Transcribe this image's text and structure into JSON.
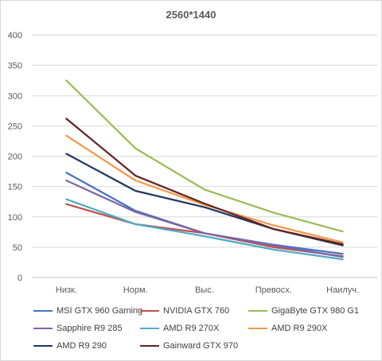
{
  "chart_data": {
    "type": "line",
    "title": "2560*1440",
    "xlabel": "",
    "ylabel": "",
    "categories": [
      "Низк.",
      "Норм.",
      "Выс.",
      "Превосх.",
      "Наилуч."
    ],
    "ylim": [
      0,
      400
    ],
    "yticks": [
      0,
      50,
      100,
      150,
      200,
      250,
      300,
      350,
      400
    ],
    "grid": "horizontal",
    "legend_position": "bottom",
    "series": [
      {
        "name": "MSI GTX 960 Gaming",
        "color": "#4472c4",
        "values": [
          173,
          110,
          73,
          54,
          39
        ]
      },
      {
        "name": "NVIDIA GTX 760",
        "color": "#c0504d",
        "values": [
          121,
          88,
          73,
          50,
          35
        ]
      },
      {
        "name": "GigaByte GTX 980 G1",
        "color": "#9bbb59",
        "values": [
          325,
          213,
          145,
          107,
          76
        ]
      },
      {
        "name": "Sapphire R9 285",
        "color": "#8064a2",
        "values": [
          160,
          108,
          73,
          53,
          34
        ]
      },
      {
        "name": "AMD R9 270X",
        "color": "#4bacc6",
        "values": [
          129,
          88,
          68,
          46,
          30
        ]
      },
      {
        "name": "AMD R9 290X",
        "color": "#f79646",
        "values": [
          234,
          160,
          120,
          86,
          58
        ]
      },
      {
        "name": "AMD R9 290",
        "color": "#1f3864",
        "values": [
          204,
          143,
          116,
          80,
          53
        ]
      },
      {
        "name": "Gainward GTX 970",
        "color": "#632523",
        "values": [
          262,
          168,
          122,
          80,
          55
        ]
      }
    ]
  }
}
